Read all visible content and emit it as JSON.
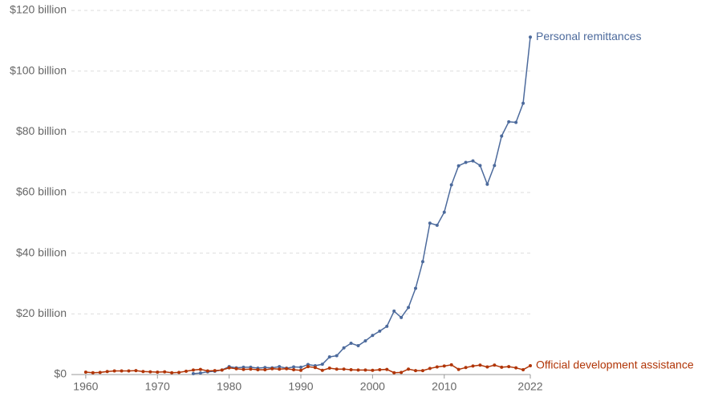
{
  "chart_data": {
    "type": "line",
    "x": [
      1960,
      1961,
      1962,
      1963,
      1964,
      1965,
      1966,
      1967,
      1968,
      1969,
      1970,
      1971,
      1972,
      1973,
      1974,
      1975,
      1976,
      1977,
      1978,
      1979,
      1980,
      1981,
      1982,
      1983,
      1984,
      1985,
      1986,
      1987,
      1988,
      1989,
      1990,
      1991,
      1992,
      1993,
      1994,
      1995,
      1996,
      1997,
      1998,
      1999,
      2000,
      2001,
      2002,
      2003,
      2004,
      2005,
      2006,
      2007,
      2008,
      2009,
      2010,
      2011,
      2012,
      2013,
      2014,
      2015,
      2016,
      2017,
      2018,
      2019,
      2020,
      2021,
      2022
    ],
    "series": [
      {
        "name": "Personal remittances",
        "color": "#4c6a9c",
        "values": [
          null,
          null,
          null,
          null,
          null,
          null,
          null,
          null,
          null,
          null,
          null,
          null,
          null,
          null,
          null,
          0.3,
          0.5,
          0.9,
          1.1,
          1.5,
          2.6,
          2.2,
          2.4,
          2.4,
          2.1,
          2.3,
          2.2,
          2.6,
          2.1,
          2.5,
          2.4,
          3.3,
          2.9,
          3.4,
          5.8,
          6.2,
          8.8,
          10.3,
          9.5,
          11.1,
          12.9,
          14.3,
          15.9,
          20.9,
          18.8,
          22.1,
          28.4,
          37.2,
          49.9,
          49.2,
          53.5,
          62.5,
          68.8,
          69.9,
          70.4,
          68.9,
          62.7,
          68.9,
          78.6,
          83.3,
          83.1,
          89.4,
          111.2
        ]
      },
      {
        "name": "Official development assistance",
        "color": "#b13507",
        "values": [
          0.8,
          0.6,
          0.7,
          1.0,
          1.2,
          1.2,
          1.2,
          1.3,
          1.0,
          0.9,
          0.8,
          0.9,
          0.6,
          0.7,
          1.1,
          1.5,
          1.7,
          1.2,
          1.3,
          1.5,
          2.2,
          1.9,
          1.7,
          1.8,
          1.6,
          1.6,
          1.9,
          1.8,
          1.9,
          1.6,
          1.4,
          2.6,
          2.3,
          1.4,
          2.1,
          1.8,
          1.8,
          1.6,
          1.5,
          1.5,
          1.4,
          1.6,
          1.7,
          0.6,
          0.7,
          1.8,
          1.3,
          1.3,
          2.0,
          2.5,
          2.8,
          3.2,
          1.7,
          2.3,
          2.8,
          3.1,
          2.5,
          3.1,
          2.4,
          2.6,
          2.2,
          1.6,
          2.9
        ]
      }
    ],
    "xlim": [
      1958,
      2022
    ],
    "xticks": [
      1960,
      1970,
      1980,
      1990,
      2000,
      2010,
      2022
    ],
    "ylim": [
      0,
      120
    ],
    "yticks": [
      {
        "value": 0,
        "label": "$0"
      },
      {
        "value": 20,
        "label": "$20 billion"
      },
      {
        "value": 40,
        "label": "$40 billion"
      },
      {
        "value": 60,
        "label": "$60 billion"
      },
      {
        "value": 80,
        "label": "$80 billion"
      },
      {
        "value": 100,
        "label": "$100 billion"
      },
      {
        "value": 120,
        "label": "$120 billion"
      }
    ],
    "grid": true
  }
}
